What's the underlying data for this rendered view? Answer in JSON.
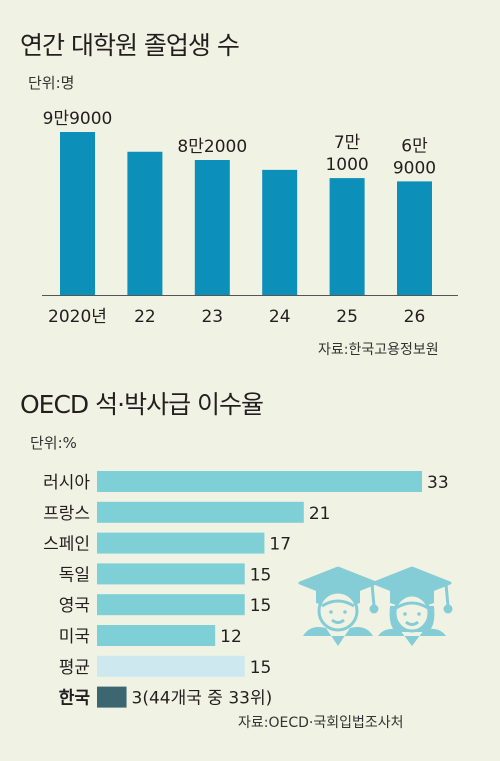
{
  "chart_data": [
    {
      "type": "bar",
      "title": "연간 대학원 졸업생 수",
      "unit": "단위:명",
      "categories": [
        "2020년",
        "22",
        "23",
        "24",
        "25",
        "26"
      ],
      "values": [
        99000,
        87000,
        82000,
        76000,
        71000,
        69000
      ],
      "data_labels": [
        "9만9000",
        "",
        "8만2000",
        "",
        "7만\n1000",
        "6만\n9000"
      ],
      "source": "자료:한국고용정보원",
      "bar_color": "#0c8fb8"
    },
    {
      "type": "bar",
      "orientation": "horizontal",
      "title": "OECD 석·박사급 이수율",
      "unit": "단위:%",
      "categories": [
        "러시아",
        "프랑스",
        "스페인",
        "독일",
        "영국",
        "미국",
        "평균",
        "한국"
      ],
      "values": [
        33,
        21,
        17,
        15,
        15,
        12,
        15,
        3
      ],
      "data_labels": [
        "33",
        "21",
        "17",
        "15",
        "15",
        "12",
        "15",
        "3(44개국 중 33위)"
      ],
      "highlight": {
        "평균": "#cde9ef",
        "한국": "#3c6670"
      },
      "source": "자료:OECD·국회입법조사처",
      "bar_color": "#7fcfd7",
      "xlim": [
        0,
        33
      ]
    }
  ],
  "icons": [
    "graduate-male-icon",
    "graduate-female-icon"
  ],
  "icon_color": "#84cdd6"
}
